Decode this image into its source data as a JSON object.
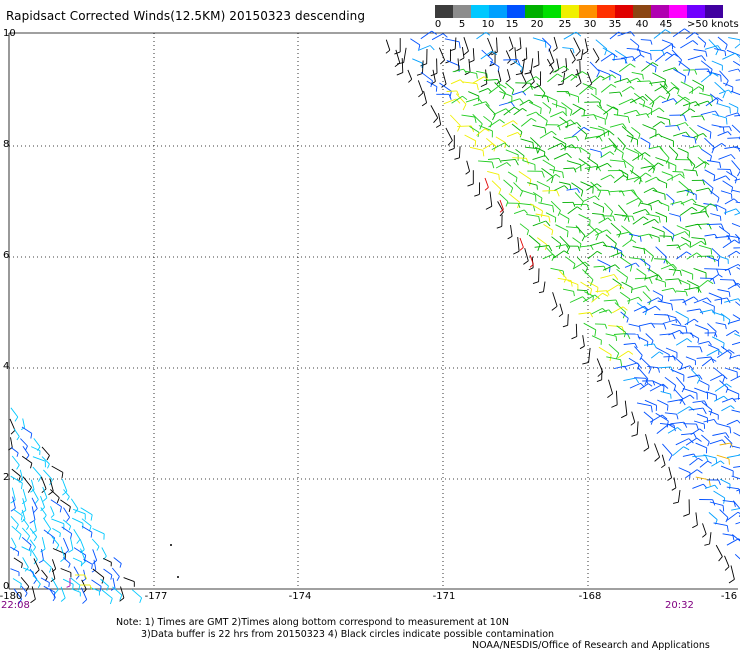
{
  "title": "Rapidsact Corrected Winds(12.5KM) 20150323 descending",
  "scale": {
    "labels": [
      "0",
      "5",
      "10",
      "15",
      "20",
      "25",
      "30",
      "35",
      "40",
      "45"
    ],
    "unit": ">50 knots",
    "colors": [
      "#3c3c3c",
      "#8c8c8c",
      "#00c8ff",
      "#00a0ff",
      "#0050ff",
      "#00b000",
      "#00e000",
      "#f0f000",
      "#ff9000",
      "#ff3000",
      "#e00000",
      "#8b4513",
      "#b000b0",
      "#ff00ff",
      "#7000ff",
      "#4000a0"
    ]
  },
  "axes": {
    "lat_labels": [
      "10",
      "8",
      "6",
      "4",
      "2",
      "0"
    ],
    "lon_labels": [
      "-180",
      "-177",
      "-174",
      "-171",
      "-168",
      "-16"
    ]
  },
  "times": {
    "left": "22:08",
    "right": "20:32"
  },
  "notes": [
    "Note: 1) Times are GMT 2)Times along bottom correspond to measurement at 10N",
    "3)Data buffer is 22 hrs from 20150323 4) Black circles indicate possible contamination",
    "NOAA/NESDIS/Office of Research and Applications"
  ],
  "swaths": [
    {
      "name": "east",
      "orientation": "descending"
    },
    {
      "name": "southwest",
      "orientation": "descending"
    }
  ]
}
